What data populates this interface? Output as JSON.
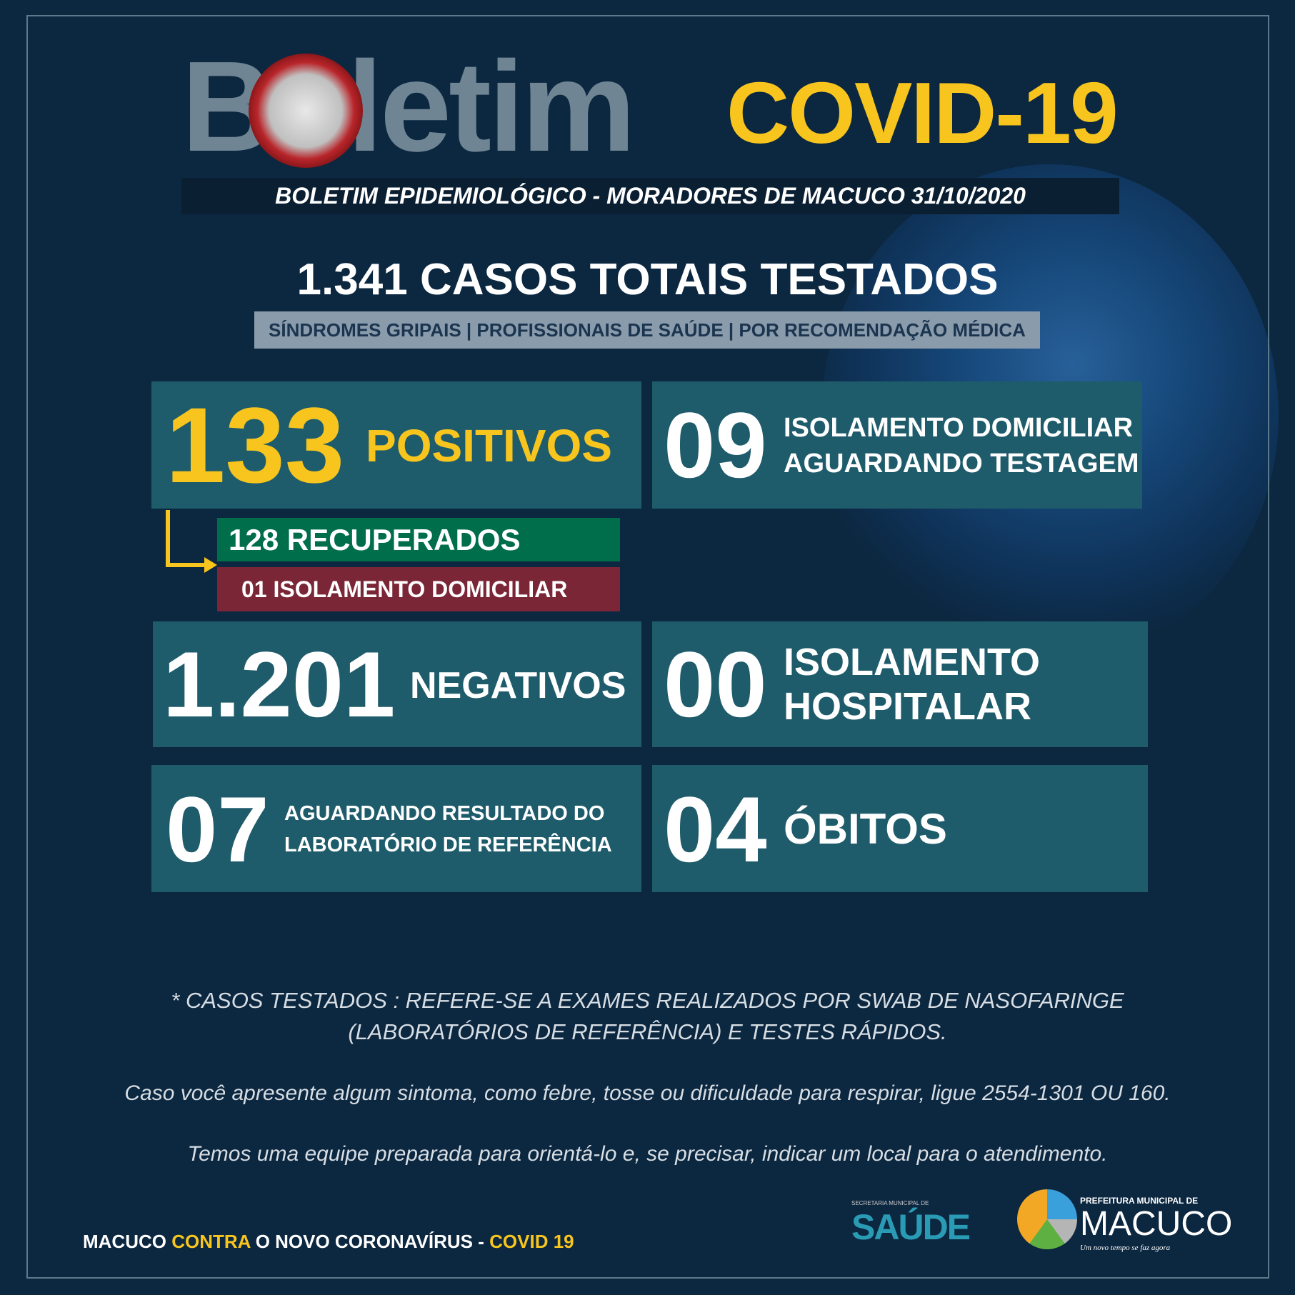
{
  "header": {
    "title_word": "Boletim",
    "title_covid": "COVID-19",
    "subtitle": "BOLETIM EPIDEMIOLÓGICO - MORADORES DE MACUCO 31/10/2020"
  },
  "totals": {
    "number": "1.341",
    "label": "CASOS TOTAIS TESTADOS",
    "categories": "SÍNDROMES GRIPAIS  | PROFISSIONAIS DE SAÚDE | POR RECOMENDAÇÃO MÉDICA"
  },
  "stats": {
    "positivos": {
      "value": "133",
      "label": "POSITIVOS"
    },
    "recuperados": "128 RECUPERADOS",
    "isolamento_pos": "01 ISOLAMENTO DOMICILIAR",
    "aguardando_teste": {
      "value": "09",
      "line1": "ISOLAMENTO DOMICILIAR",
      "line2": "AGUARDANDO TESTAGEM"
    },
    "negativos": {
      "value": "1.201",
      "label": "NEGATIVOS"
    },
    "hospitalar": {
      "value": "00",
      "line1": "ISOLAMENTO",
      "line2": "HOSPITALAR"
    },
    "aguardando_lab": {
      "value": "07",
      "line1": "AGUARDANDO RESULTADO DO",
      "line2": "LABORATÓRIO DE REFERÊNCIA"
    },
    "obitos": {
      "value": "04",
      "label": "ÓBITOS"
    }
  },
  "footer": {
    "note1": "* CASOS TESTADOS : REFERE-SE A EXAMES REALIZADOS POR SWAB DE NASOFARINGE",
    "note2": "(LABORATÓRIOS DE REFERÊNCIA)  E  TESTES RÁPIDOS.",
    "contact": "Caso você apresente algum sintoma, como febre, tosse ou dificuldade para respirar, ligue 2554-1301 OU 160.",
    "team": "Temos uma equipe preparada para orientá-lo e, se precisar, indicar um local para o atendimento.",
    "slogan_a": "MACUCO ",
    "slogan_b": "CONTRA",
    "slogan_c": " O NOVO CORONAVÍRUS - ",
    "slogan_d": "COVID 19"
  },
  "logos": {
    "saude_small": "SECRETARIA MUNICIPAL DE",
    "saude": "SAÚDE",
    "pref_small": "PREFEITURA MUNICIPAL DE",
    "macuco": "MACUCO",
    "motto": "Um novo tempo se faz agora"
  },
  "colors": {
    "background": "#0c2740",
    "box": "#1f5c6b",
    "yellow": "#f7c51e",
    "green": "#006e4b",
    "maroon": "#7b2636"
  }
}
